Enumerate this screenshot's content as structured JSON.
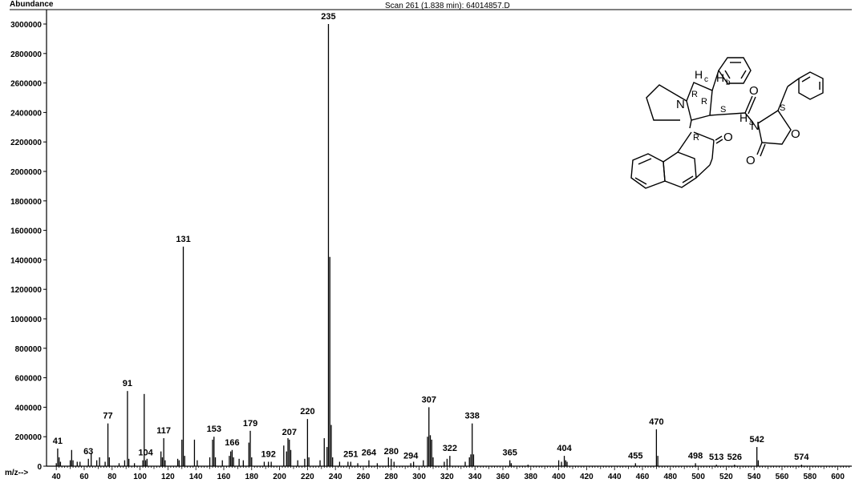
{
  "chart_data": {
    "type": "bar",
    "title": "Scan 261 (1.838 min): 64014857.D",
    "ylabel": "Abundance",
    "xlabel": "m/z-->",
    "xlim": [
      33,
      610
    ],
    "ylim": [
      0,
      3000000
    ],
    "yticks": [
      0,
      200000,
      400000,
      600000,
      800000,
      1000000,
      1200000,
      1400000,
      1600000,
      1800000,
      2000000,
      2200000,
      2400000,
      2600000,
      2800000,
      3000000
    ],
    "xticks": [
      40,
      60,
      80,
      100,
      120,
      140,
      160,
      180,
      200,
      220,
      240,
      260,
      280,
      300,
      320,
      340,
      360,
      380,
      400,
      420,
      440,
      460,
      480,
      500,
      520,
      540,
      560,
      580,
      600
    ],
    "peaks": [
      {
        "mz": 40,
        "y": 20000
      },
      {
        "mz": 41,
        "y": 120000,
        "label": "41"
      },
      {
        "mz": 42,
        "y": 60000
      },
      {
        "mz": 43,
        "y": 30000
      },
      {
        "mz": 50,
        "y": 40000
      },
      {
        "mz": 51,
        "y": 110000
      },
      {
        "mz": 52,
        "y": 40000
      },
      {
        "mz": 55,
        "y": 30000
      },
      {
        "mz": 57,
        "y": 30000
      },
      {
        "mz": 63,
        "y": 50000,
        "label": "63"
      },
      {
        "mz": 65,
        "y": 90000
      },
      {
        "mz": 69,
        "y": 40000
      },
      {
        "mz": 71,
        "y": 60000
      },
      {
        "mz": 75,
        "y": 30000
      },
      {
        "mz": 77,
        "y": 290000,
        "label": "77"
      },
      {
        "mz": 78,
        "y": 60000
      },
      {
        "mz": 85,
        "y": 20000
      },
      {
        "mz": 89,
        "y": 40000
      },
      {
        "mz": 91,
        "y": 510000,
        "label": "91"
      },
      {
        "mz": 92,
        "y": 50000
      },
      {
        "mz": 96,
        "y": 20000
      },
      {
        "mz": 102,
        "y": 40000
      },
      {
        "mz": 103,
        "y": 490000
      },
      {
        "mz": 104,
        "y": 40000,
        "label": "104"
      },
      {
        "mz": 105,
        "y": 50000
      },
      {
        "mz": 115,
        "y": 100000
      },
      {
        "mz": 116,
        "y": 60000
      },
      {
        "mz": 117,
        "y": 190000,
        "label": "117"
      },
      {
        "mz": 118,
        "y": 40000
      },
      {
        "mz": 127,
        "y": 50000
      },
      {
        "mz": 128,
        "y": 40000
      },
      {
        "mz": 130,
        "y": 180000
      },
      {
        "mz": 131,
        "y": 1490000,
        "label": "131"
      },
      {
        "mz": 132,
        "y": 70000
      },
      {
        "mz": 139,
        "y": 180000
      },
      {
        "mz": 141,
        "y": 40000
      },
      {
        "mz": 150,
        "y": 60000
      },
      {
        "mz": 152,
        "y": 180000
      },
      {
        "mz": 153,
        "y": 200000,
        "label": "153"
      },
      {
        "mz": 154,
        "y": 60000
      },
      {
        "mz": 159,
        "y": 40000
      },
      {
        "mz": 164,
        "y": 70000
      },
      {
        "mz": 165,
        "y": 100000
      },
      {
        "mz": 166,
        "y": 110000,
        "label": "166"
      },
      {
        "mz": 167,
        "y": 60000
      },
      {
        "mz": 171,
        "y": 50000
      },
      {
        "mz": 174,
        "y": 40000
      },
      {
        "mz": 178,
        "y": 160000
      },
      {
        "mz": 179,
        "y": 240000,
        "label": "179"
      },
      {
        "mz": 180,
        "y": 60000
      },
      {
        "mz": 189,
        "y": 30000
      },
      {
        "mz": 192,
        "y": 30000,
        "label": "192"
      },
      {
        "mz": 194,
        "y": 30000
      },
      {
        "mz": 203,
        "y": 140000
      },
      {
        "mz": 205,
        "y": 100000
      },
      {
        "mz": 206,
        "y": 190000
      },
      {
        "mz": 207,
        "y": 180000,
        "label": "207"
      },
      {
        "mz": 208,
        "y": 110000
      },
      {
        "mz": 213,
        "y": 40000
      },
      {
        "mz": 218,
        "y": 50000
      },
      {
        "mz": 220,
        "y": 320000,
        "label": "220"
      },
      {
        "mz": 221,
        "y": 60000
      },
      {
        "mz": 229,
        "y": 40000
      },
      {
        "mz": 232,
        "y": 190000
      },
      {
        "mz": 234,
        "y": 130000
      },
      {
        "mz": 235,
        "y": 3000000,
        "label": "235"
      },
      {
        "mz": 236,
        "y": 1420000
      },
      {
        "mz": 237,
        "y": 280000
      },
      {
        "mz": 238,
        "y": 60000
      },
      {
        "mz": 243,
        "y": 30000
      },
      {
        "mz": 249,
        "y": 30000
      },
      {
        "mz": 251,
        "y": 30000,
        "label": "251"
      },
      {
        "mz": 256,
        "y": 20000
      },
      {
        "mz": 264,
        "y": 40000,
        "label": "264"
      },
      {
        "mz": 270,
        "y": 20000
      },
      {
        "mz": 278,
        "y": 60000
      },
      {
        "mz": 280,
        "y": 50000,
        "label": "280"
      },
      {
        "mz": 282,
        "y": 30000
      },
      {
        "mz": 294,
        "y": 20000,
        "label": "294"
      },
      {
        "mz": 296,
        "y": 30000
      },
      {
        "mz": 303,
        "y": 40000
      },
      {
        "mz": 306,
        "y": 200000
      },
      {
        "mz": 307,
        "y": 400000,
        "label": "307"
      },
      {
        "mz": 308,
        "y": 210000
      },
      {
        "mz": 309,
        "y": 180000
      },
      {
        "mz": 310,
        "y": 60000
      },
      {
        "mz": 318,
        "y": 30000
      },
      {
        "mz": 320,
        "y": 50000
      },
      {
        "mz": 322,
        "y": 70000,
        "label": "322"
      },
      {
        "mz": 333,
        "y": 30000
      },
      {
        "mz": 336,
        "y": 60000
      },
      {
        "mz": 337,
        "y": 80000
      },
      {
        "mz": 338,
        "y": 290000,
        "label": "338"
      },
      {
        "mz": 339,
        "y": 80000
      },
      {
        "mz": 365,
        "y": 40000,
        "label": "365"
      },
      {
        "mz": 366,
        "y": 20000
      },
      {
        "mz": 378,
        "y": 10000
      },
      {
        "mz": 400,
        "y": 40000
      },
      {
        "mz": 402,
        "y": 30000
      },
      {
        "mz": 404,
        "y": 70000,
        "label": "404"
      },
      {
        "mz": 405,
        "y": 40000
      },
      {
        "mz": 406,
        "y": 30000
      },
      {
        "mz": 455,
        "y": 20000,
        "label": "455"
      },
      {
        "mz": 470,
        "y": 250000,
        "label": "470"
      },
      {
        "mz": 471,
        "y": 70000
      },
      {
        "mz": 498,
        "y": 20000,
        "label": "498"
      },
      {
        "mz": 513,
        "y": 10000,
        "label": "513"
      },
      {
        "mz": 526,
        "y": 10000,
        "label": "526"
      },
      {
        "mz": 542,
        "y": 130000,
        "label": "542"
      },
      {
        "mz": 543,
        "y": 40000
      },
      {
        "mz": 574,
        "y": 10000,
        "label": "574"
      }
    ]
  },
  "structure": {
    "atoms": {
      "Hc": "H",
      "Hc_sub": "c",
      "Hb": "H",
      "Hb_sub": "b",
      "Ha": "H",
      "Ha_sub": "a",
      "N1": "N",
      "N2": "N",
      "O1": "O",
      "O2": "O",
      "O3": "O",
      "O4": "O",
      "R1": "R",
      "R2": "R",
      "R3": "R",
      "S1": "S",
      "S2": "S"
    }
  }
}
